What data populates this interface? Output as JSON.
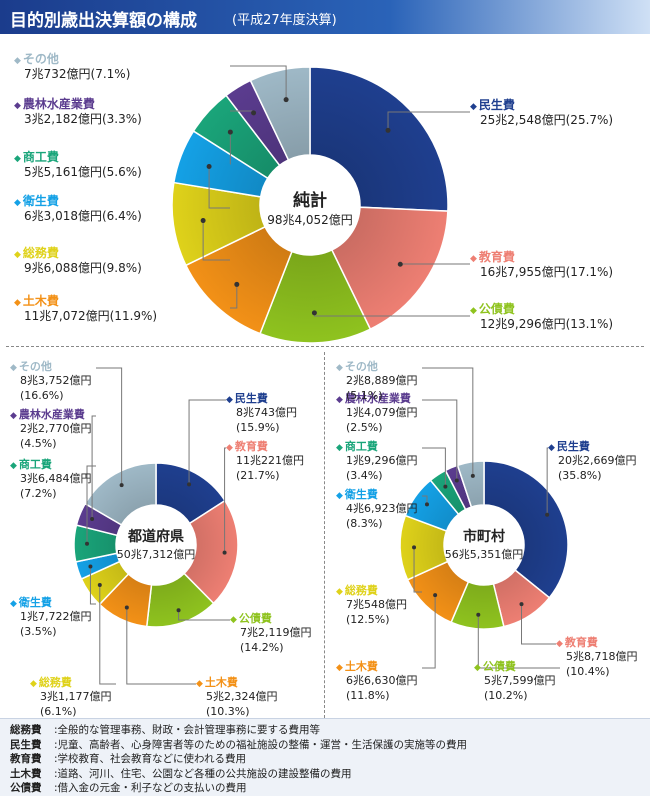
{
  "title": "目的別歳出決算額の構成",
  "subtitle": "(平成27年度決算)",
  "colors": {
    "民生費": "#1f3f8f",
    "教育費": "#ee7f73",
    "公債費": "#8fc31f",
    "土木費": "#f39117",
    "総務費": "#dfd21a",
    "衛生費": "#14a1e6",
    "商工費": "#1aa57a",
    "農林水産業費": "#5b3c8f",
    "その他": "#9fb9c7"
  },
  "chart_data": [
    {
      "type": "pie",
      "center_label": "純計",
      "center_value": "98兆4,052億円",
      "slices": [
        {
          "name": "民生費",
          "value": 25.7,
          "label": "25兆2,548億円(25.7%)"
        },
        {
          "name": "教育費",
          "value": 17.1,
          "label": "16兆7,955億円(17.1%)"
        },
        {
          "name": "公債費",
          "value": 13.1,
          "label": "12兆9,296億円(13.1%)"
        },
        {
          "name": "土木費",
          "value": 11.9,
          "label": "11兆7,072億円(11.9%)"
        },
        {
          "name": "総務費",
          "value": 9.8,
          "label": "9兆6,088億円(9.8%)"
        },
        {
          "name": "衛生費",
          "value": 6.4,
          "label": "6兆3,018億円(6.4%)"
        },
        {
          "name": "商工費",
          "value": 5.6,
          "label": "5兆5,161億円(5.6%)"
        },
        {
          "name": "農林水産業費",
          "value": 3.3,
          "label": "3兆2,182億円(3.3%)"
        },
        {
          "name": "その他",
          "value": 7.1,
          "label": "7兆732億円(7.1%)"
        }
      ]
    },
    {
      "type": "pie",
      "center_label": "都道府県",
      "center_value": "50兆7,312億円",
      "slices": [
        {
          "name": "民生費",
          "value": 15.9,
          "amount": "8兆743億円",
          "pct": "(15.9%)"
        },
        {
          "name": "教育費",
          "value": 21.7,
          "amount": "11兆221億円",
          "pct": "(21.7%)"
        },
        {
          "name": "公債費",
          "value": 14.2,
          "amount": "7兆2,119億円",
          "pct": "(14.2%)"
        },
        {
          "name": "土木費",
          "value": 10.3,
          "amount": "5兆2,324億円",
          "pct": "(10.3%)"
        },
        {
          "name": "総務費",
          "value": 6.1,
          "amount": "3兆1,177億円",
          "pct": "(6.1%)"
        },
        {
          "name": "衛生費",
          "value": 3.5,
          "amount": "1兆7,722億円",
          "pct": "(3.5%)"
        },
        {
          "name": "商工費",
          "value": 7.2,
          "amount": "3兆6,484億円",
          "pct": "(7.2%)"
        },
        {
          "name": "農林水産業費",
          "value": 4.5,
          "amount": "2兆2,770億円",
          "pct": "(4.5%)"
        },
        {
          "name": "その他",
          "value": 16.6,
          "amount": "8兆3,752億円",
          "pct": "(16.6%)"
        }
      ]
    },
    {
      "type": "pie",
      "center_label": "市町村",
      "center_value": "56兆5,351億円",
      "slices": [
        {
          "name": "民生費",
          "value": 35.8,
          "amount": "20兆2,669億円",
          "pct": "(35.8%)"
        },
        {
          "name": "教育費",
          "value": 10.4,
          "amount": "5兆8,718億円",
          "pct": "(10.4%)"
        },
        {
          "name": "公債費",
          "value": 10.2,
          "amount": "5兆7,599億円",
          "pct": "(10.2%)"
        },
        {
          "name": "土木費",
          "value": 11.8,
          "amount": "6兆6,630億円",
          "pct": "(11.8%)"
        },
        {
          "name": "総務費",
          "value": 12.5,
          "amount": "7兆548億円",
          "pct": "(12.5%)"
        },
        {
          "name": "衛生費",
          "value": 8.3,
          "amount": "4兆6,923億円",
          "pct": "(8.3%)"
        },
        {
          "name": "商工費",
          "value": 3.4,
          "amount": "1兆9,296億円",
          "pct": "(3.4%)"
        },
        {
          "name": "農林水産業費",
          "value": 2.5,
          "amount": "1兆4,079億円",
          "pct": "(2.5%)"
        },
        {
          "name": "その他",
          "value": 5.1,
          "amount": "2兆8,889億円",
          "pct": "(5.1%)"
        }
      ]
    }
  ],
  "footnotes": [
    {
      "term": "総務費",
      "desc": ":全般的な管理事務、財政・会計管理事務に要する費用等"
    },
    {
      "term": "民生費",
      "desc": ":児童、高齢者、心身障害者等のための福祉施設の整備・運営・生活保護の実施等の費用"
    },
    {
      "term": "教育費",
      "desc": ":学校教育、社会教育などに使われる費用"
    },
    {
      "term": "土木費",
      "desc": ":道路、河川、住宅、公園など各種の公共施設の建設整備の費用"
    },
    {
      "term": "公債費",
      "desc": ":借入金の元金・利子などの支払いの費用"
    }
  ]
}
